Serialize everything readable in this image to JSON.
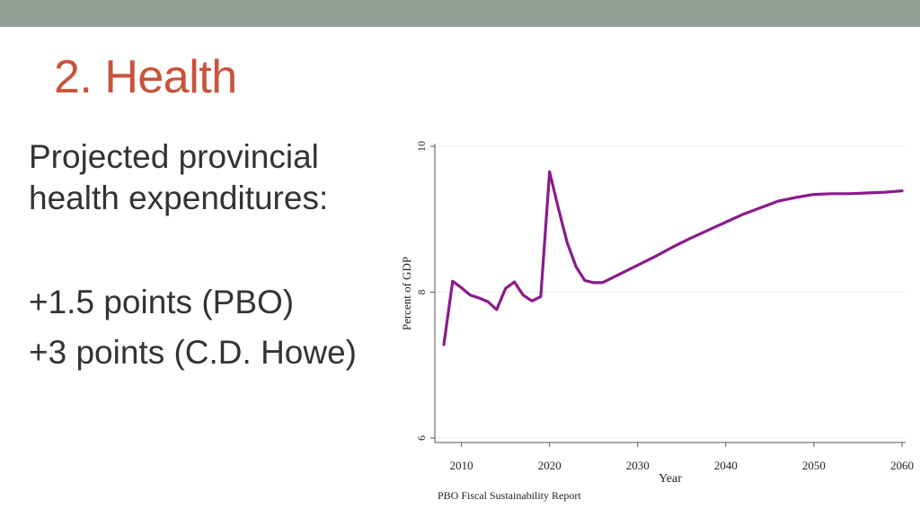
{
  "slide": {
    "title": "2. Health",
    "lines": [
      "Projected provincial",
      "health expenditures:",
      "+1.5 points (PBO)",
      "+3 points (C.D. Howe)"
    ]
  },
  "colors": {
    "top_bar": "#919e96",
    "title": "#c8533b",
    "text": "#333333",
    "series_line": "#8b1a8b"
  },
  "chart_data": {
    "type": "line",
    "title": "",
    "xlabel": "Year",
    "ylabel": "Percent of GDP",
    "source_note": "PBO Fiscal Sustainability Report",
    "xlim": [
      2008,
      2060
    ],
    "ylim": [
      6,
      10
    ],
    "x_ticks": [
      2010,
      2020,
      2030,
      2040,
      2050,
      2060
    ],
    "y_ticks": [
      6,
      8,
      10
    ],
    "grid": true,
    "series": [
      {
        "x": [
          2008,
          2009,
          2010,
          2011,
          2012,
          2013,
          2014,
          2015,
          2016,
          2017,
          2018,
          2019,
          2020,
          2021,
          2022,
          2023,
          2024,
          2025,
          2026,
          2028,
          2030,
          2032,
          2034,
          2036,
          2038,
          2040,
          2042,
          2044,
          2046,
          2048,
          2050,
          2052,
          2054,
          2056,
          2058,
          2060
        ],
        "values": [
          7.28,
          8.15,
          8.06,
          7.96,
          7.92,
          7.87,
          7.76,
          8.05,
          8.14,
          7.96,
          7.88,
          7.94,
          9.65,
          9.15,
          8.68,
          8.35,
          8.16,
          8.13,
          8.13,
          8.25,
          8.37,
          8.49,
          8.62,
          8.74,
          8.85,
          8.96,
          9.07,
          9.16,
          9.25,
          9.3,
          9.34,
          9.35,
          9.35,
          9.36,
          9.37,
          9.39
        ]
      }
    ]
  }
}
